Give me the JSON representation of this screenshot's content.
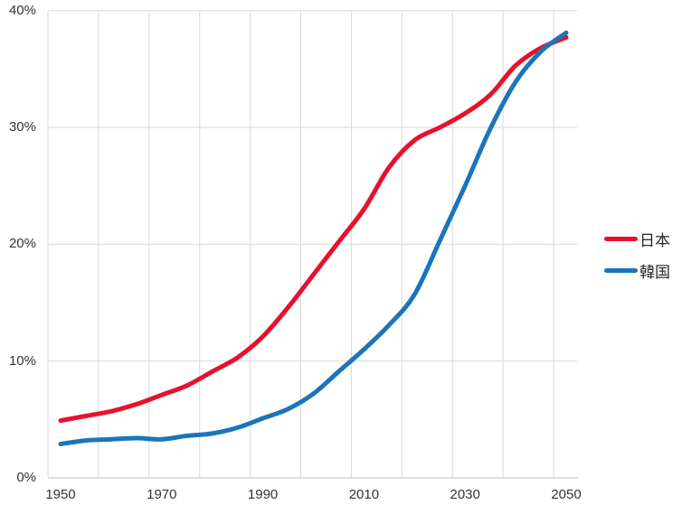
{
  "chart_data": {
    "type": "line",
    "title": "",
    "xlabel": "",
    "ylabel": "",
    "x": [
      1950,
      1955,
      1960,
      1965,
      1970,
      1975,
      1980,
      1985,
      1990,
      1995,
      2000,
      2005,
      2010,
      2015,
      2020,
      2025,
      2030,
      2035,
      2040,
      2045,
      2050
    ],
    "series": [
      {
        "key": "japan",
        "name": "日本",
        "color": "#e8112d",
        "values": [
          4.9,
          5.3,
          5.7,
          6.3,
          7.1,
          7.9,
          9.1,
          10.3,
          12.1,
          14.6,
          17.4,
          20.2,
          23.0,
          26.6,
          28.9,
          30.0,
          31.2,
          32.8,
          35.3,
          36.8,
          37.7
        ]
      },
      {
        "key": "korea",
        "name": "韓国",
        "color": "#1b75bb",
        "values": [
          2.9,
          3.2,
          3.3,
          3.4,
          3.3,
          3.6,
          3.8,
          4.3,
          5.1,
          5.9,
          7.2,
          9.1,
          11.0,
          13.1,
          15.7,
          20.3,
          25.0,
          29.9,
          33.9,
          36.5,
          38.1
        ]
      }
    ],
    "ylim": [
      0,
      40
    ],
    "y_ticks": [
      0,
      10,
      20,
      30,
      40
    ],
    "y_tick_labels": [
      "0%",
      "10%",
      "20%",
      "30%",
      "40%"
    ],
    "x_tick_years": [
      1950,
      1970,
      1990,
      2010,
      2030,
      2050
    ],
    "x_tick_labels": [
      "1950",
      "1970",
      "1990",
      "2010",
      "2030",
      "2050"
    ],
    "grid": true,
    "gridline_years_step": 10,
    "legend_position": "right",
    "line_smoothing": true
  },
  "colors": {
    "background": "#ffffff",
    "gridline": "#dadada",
    "axis_line": "#bfbfbf",
    "tick_text": "#333333",
    "legend_text": "#262626"
  }
}
